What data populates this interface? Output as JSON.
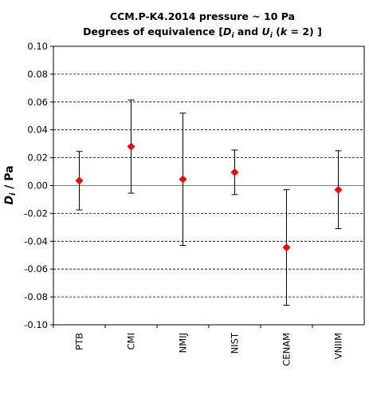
{
  "chart_data": {
    "type": "scatter",
    "title_line1": "CCM.P-K4.2014  pressure ~ 10 Pa",
    "title_line2_parts": {
      "a": "Degrees of equivalence [",
      "b": "D",
      "c": "i",
      "d": " and ",
      "e": "U",
      "f": "i",
      "g": " (",
      "h": "k",
      "i": " = 2) ]"
    },
    "ylabel_parts": {
      "a": "D",
      "b": "i",
      "c": " / Pa"
    },
    "categories": [
      "PTB",
      "CMI",
      "NMIJ",
      "NIST",
      "CENAM",
      "VNIIM"
    ],
    "values": [
      0.0035,
      0.028,
      0.0045,
      0.0095,
      -0.0445,
      -0.003
    ],
    "errors": [
      0.021,
      0.0335,
      0.0475,
      0.016,
      0.0415,
      0.028
    ],
    "ylim": [
      -0.1,
      0.1
    ],
    "yticks": [
      "0.10",
      "0.08",
      "0.06",
      "0.04",
      "0.02",
      "0.00",
      "-0.02",
      "-0.04",
      "-0.06",
      "-0.08",
      "-0.10"
    ],
    "ytick_values": [
      0.1,
      0.08,
      0.06,
      0.04,
      0.02,
      0.0,
      -0.02,
      -0.04,
      -0.06,
      -0.08,
      -0.1
    ],
    "grid": true,
    "marker_color": "#ff0000",
    "gridline_color": "#000000",
    "zero_line_color": "#808080"
  }
}
